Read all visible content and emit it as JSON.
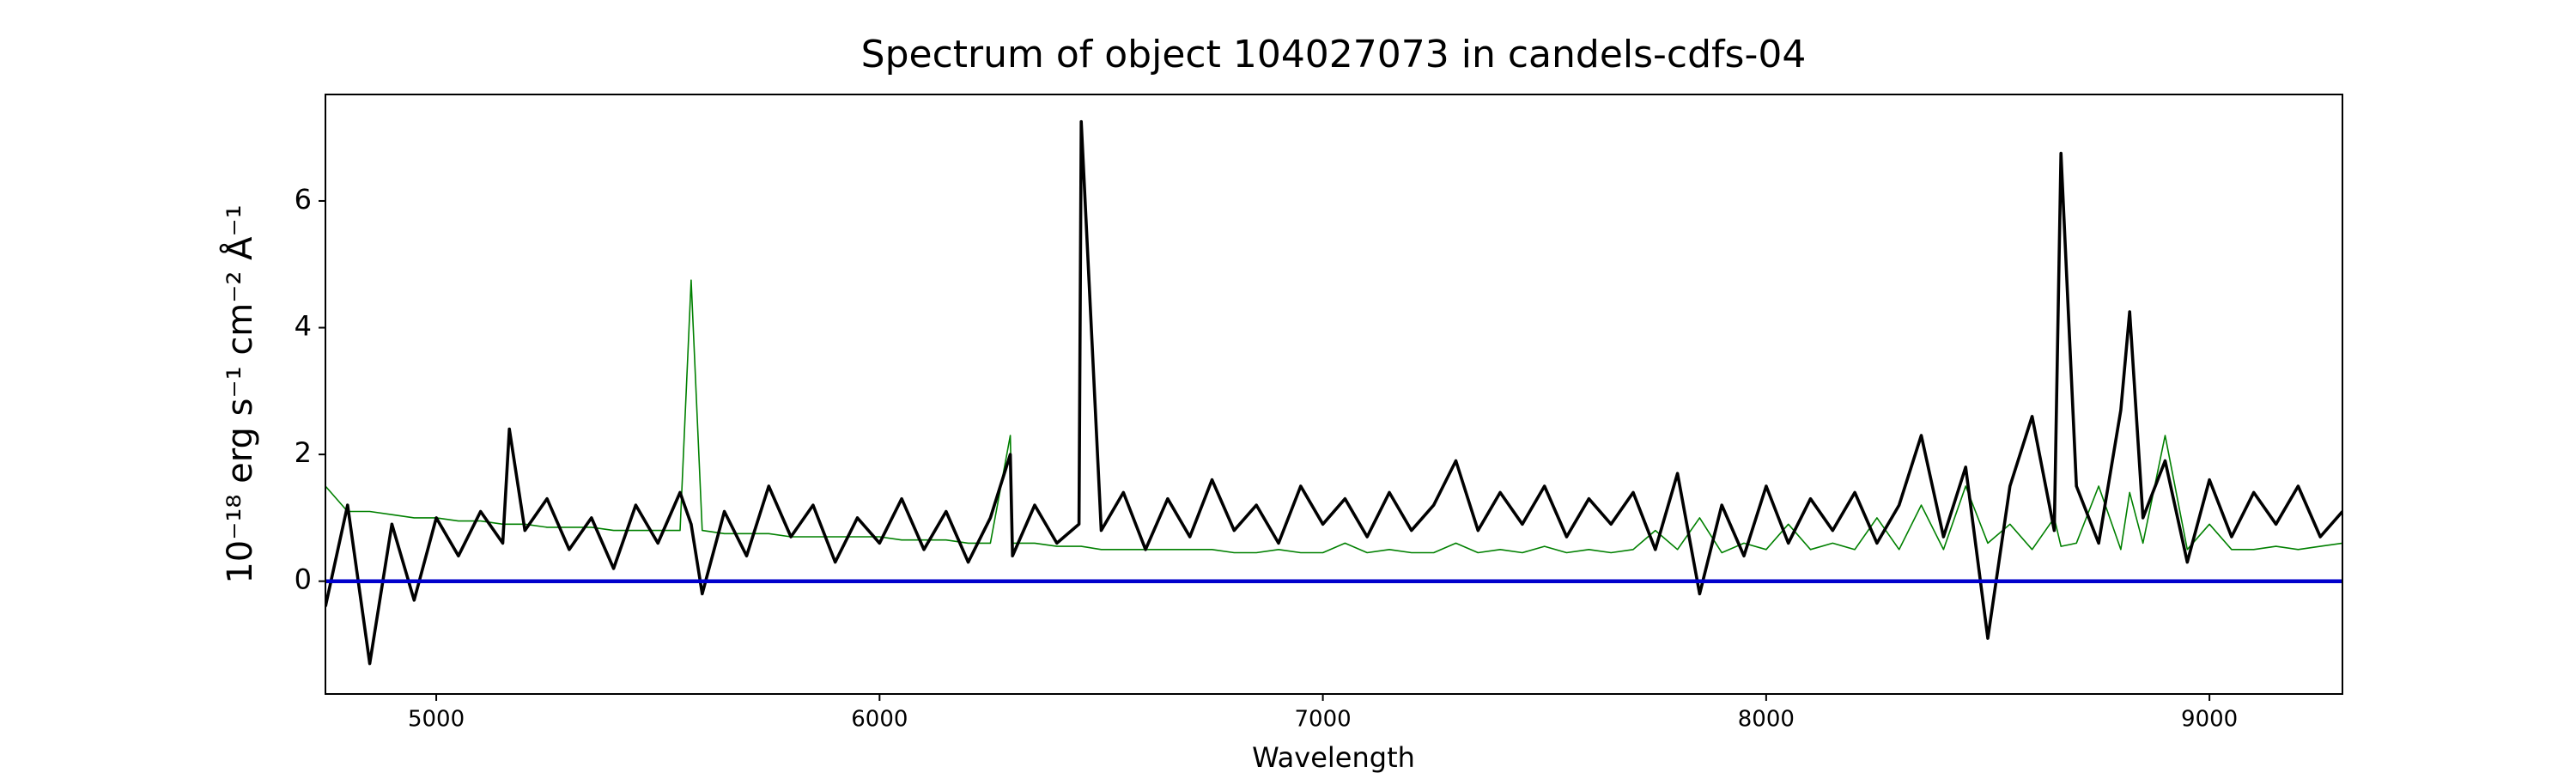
{
  "chart_data": {
    "type": "line",
    "title": "Spectrum of object 104027073 in candels-cdfs-04",
    "x_label": "Wavelength",
    "y_label": "10⁻¹⁸ erg s⁻¹ cm⁻² Å⁻¹",
    "x": [
      4750,
      4800,
      4850,
      4900,
      4950,
      5000,
      5050,
      5100,
      5150,
      5165,
      5200,
      5250,
      5300,
      5350,
      5400,
      5450,
      5500,
      5550,
      5575,
      5600,
      5650,
      5700,
      5750,
      5800,
      5850,
      5900,
      5950,
      6000,
      6050,
      6100,
      6150,
      6200,
      6250,
      6295,
      6300,
      6350,
      6400,
      6450,
      6455,
      6500,
      6550,
      6600,
      6650,
      6700,
      6750,
      6800,
      6850,
      6900,
      6950,
      7000,
      7050,
      7100,
      7150,
      7200,
      7250,
      7300,
      7350,
      7400,
      7450,
      7500,
      7550,
      7600,
      7650,
      7700,
      7750,
      7800,
      7850,
      7900,
      7950,
      8000,
      8050,
      8100,
      8150,
      8200,
      8250,
      8300,
      8350,
      8400,
      8450,
      8500,
      8550,
      8600,
      8650,
      8665,
      8700,
      8750,
      8800,
      8820,
      8850,
      8900,
      8950,
      9000,
      9050,
      9100,
      9150,
      9200,
      9250,
      9300
    ],
    "series": [
      {
        "color": "#008000",
        "values": [
          1.5,
          1.1,
          1.1,
          1.05,
          1.0,
          1.0,
          0.95,
          0.95,
          0.9,
          0.9,
          0.9,
          0.85,
          0.85,
          0.85,
          0.8,
          0.8,
          0.8,
          0.8,
          4.75,
          0.8,
          0.75,
          0.75,
          0.75,
          0.7,
          0.7,
          0.7,
          0.7,
          0.7,
          0.65,
          0.65,
          0.65,
          0.6,
          0.6,
          2.3,
          0.6,
          0.6,
          0.55,
          0.55,
          0.55,
          0.5,
          0.5,
          0.5,
          0.5,
          0.5,
          0.5,
          0.45,
          0.45,
          0.5,
          0.45,
          0.45,
          0.6,
          0.45,
          0.5,
          0.45,
          0.45,
          0.6,
          0.45,
          0.5,
          0.45,
          0.55,
          0.45,
          0.5,
          0.45,
          0.5,
          0.8,
          0.5,
          1.0,
          0.45,
          0.6,
          0.5,
          0.9,
          0.5,
          0.6,
          0.5,
          1.0,
          0.5,
          1.2,
          0.5,
          1.5,
          0.6,
          0.9,
          0.5,
          1.0,
          0.55,
          0.6,
          1.5,
          0.5,
          1.4,
          0.6,
          2.3,
          0.5,
          0.9,
          0.5,
          0.5,
          0.55,
          0.5,
          0.55,
          0.6
        ]
      },
      {
        "color": "#000000",
        "values": [
          -0.4,
          1.2,
          -1.3,
          0.9,
          -0.3,
          1.0,
          0.4,
          1.1,
          0.6,
          2.4,
          0.8,
          1.3,
          0.5,
          1.0,
          0.2,
          1.2,
          0.6,
          1.4,
          0.9,
          -0.2,
          1.1,
          0.4,
          1.5,
          0.7,
          1.2,
          0.3,
          1.0,
          0.6,
          1.3,
          0.5,
          1.1,
          0.3,
          1.0,
          2.0,
          0.4,
          1.2,
          0.6,
          0.9,
          7.25,
          0.8,
          1.4,
          0.5,
          1.3,
          0.7,
          1.6,
          0.8,
          1.2,
          0.6,
          1.5,
          0.9,
          1.3,
          0.7,
          1.4,
          0.8,
          1.2,
          1.9,
          0.8,
          1.4,
          0.9,
          1.5,
          0.7,
          1.3,
          0.9,
          1.4,
          0.5,
          1.7,
          -0.2,
          1.2,
          0.4,
          1.5,
          0.6,
          1.3,
          0.8,
          1.4,
          0.6,
          1.2,
          2.3,
          0.7,
          1.8,
          -0.9,
          1.5,
          2.6,
          0.8,
          6.75,
          1.5,
          0.6,
          2.7,
          4.25,
          1.0,
          1.9,
          0.3,
          1.6,
          0.7,
          1.4,
          0.9,
          1.5,
          0.7,
          1.1
        ]
      },
      {
        "color": "#0000cc",
        "values": [
          0,
          0,
          0,
          0,
          0,
          0,
          0,
          0,
          0,
          0,
          0,
          0,
          0,
          0,
          0,
          0,
          0,
          0,
          0,
          0,
          0,
          0,
          0,
          0,
          0,
          0,
          0,
          0,
          0,
          0,
          0,
          0,
          0,
          0,
          0,
          0,
          0,
          0,
          0,
          0,
          0,
          0,
          0,
          0,
          0,
          0,
          0,
          0,
          0,
          0,
          0,
          0,
          0,
          0,
          0,
          0,
          0,
          0,
          0,
          0,
          0,
          0,
          0,
          0,
          0,
          0,
          0,
          0,
          0,
          0,
          0,
          0,
          0,
          0,
          0,
          0,
          0,
          0,
          0,
          0,
          0,
          0,
          0,
          0,
          0,
          0,
          0,
          0,
          0,
          0,
          0,
          0,
          0,
          0,
          0,
          0,
          0,
          0
        ]
      }
    ],
    "xlim": [
      4750,
      9300
    ],
    "xticks": [
      5000,
      6000,
      7000,
      8000,
      9000
    ],
    "ylim": [
      -1.78,
      7.68
    ],
    "yticks": [
      0,
      2,
      4,
      6
    ]
  }
}
